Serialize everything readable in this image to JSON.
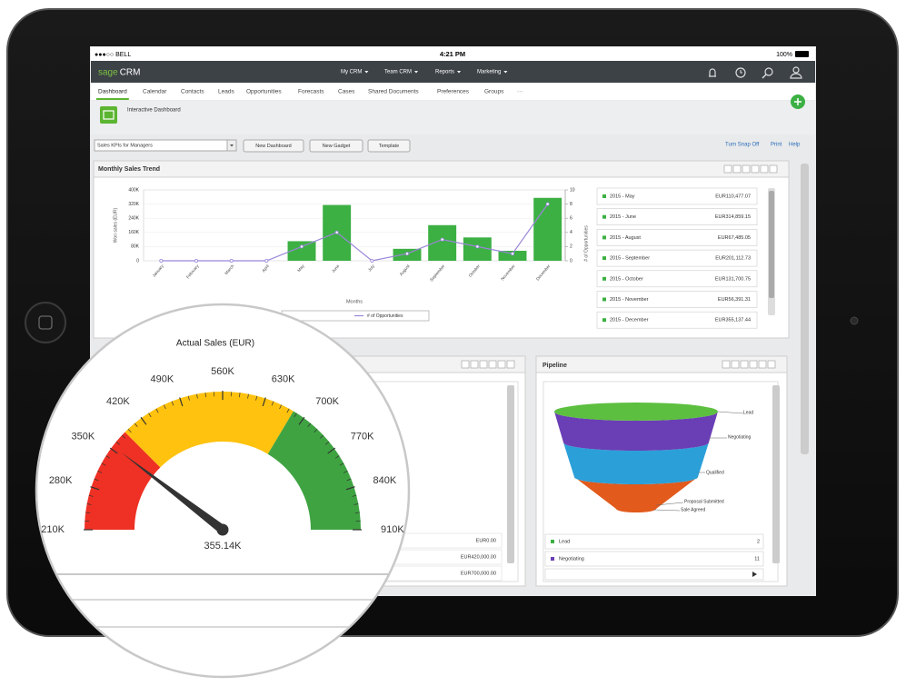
{
  "status": {
    "carrier": "●●●○○ BELL",
    "time": "4:21 PM",
    "battery": "100%"
  },
  "header": {
    "brand": "sage",
    "product": "CRM",
    "menu": [
      "My CRM",
      "Team CRM",
      "Reports",
      "Marketing"
    ]
  },
  "tabs": [
    "Dashboard",
    "Calendar",
    "Contacts",
    "Leads",
    "Opportunities",
    "Forecasts",
    "Cases",
    "Shared Documents",
    "Preferences",
    "Groups",
    "···"
  ],
  "page": {
    "title": "Interactive Dashboard",
    "dashboard_select": "Sales KPIs for Managers",
    "buttons": [
      "New Dashboard",
      "New Gadget",
      "Template"
    ],
    "links": [
      "Turn Snap Off",
      "Print",
      "Help"
    ]
  },
  "chart_data": [
    {
      "type": "bar",
      "title": "Monthly Sales Trend",
      "x_label": "Months",
      "y_label": "Won sales (EUR)",
      "y2_label": "# of Opportunities",
      "categories": [
        "January",
        "February",
        "March",
        "April",
        "May",
        "June",
        "July",
        "August",
        "September",
        "October",
        "November",
        "December"
      ],
      "series": [
        {
          "type": "bar",
          "color": "#3cb043",
          "values": [
            0,
            0,
            0,
            0,
            110477.07,
            314859.15,
            0,
            67485.05,
            201112.73,
            131700.75,
            56391.31,
            355137.44
          ]
        },
        {
          "type": "line",
          "name": "# of Opportunities",
          "color": "#9b86d9",
          "axis": "y2",
          "values": [
            0,
            0,
            0,
            0,
            2,
            4,
            0,
            1,
            3,
            2,
            1,
            8
          ]
        }
      ],
      "ylim": [
        0,
        400000
      ],
      "yticks": [
        0,
        {
          "value": 80000,
          "label": "80K"
        },
        {
          "value": 160000,
          "label": "160K"
        },
        {
          "value": 240000,
          "label": "240K"
        },
        {
          "value": 320000,
          "label": "320K"
        },
        {
          "value": 400000,
          "label": "400K"
        }
      ],
      "y2lim": [
        0,
        10
      ],
      "y2ticks": [
        0,
        2,
        4,
        6,
        8,
        10
      ],
      "grid": true
    },
    {
      "type": "gauge",
      "title": "Actual Sales (EUR)",
      "value": 355140,
      "value_label": "355.14K",
      "range": [
        210000,
        910000
      ],
      "ticks": [
        {
          "value": 210000,
          "label": "210K"
        },
        {
          "value": 280000,
          "label": "280K"
        },
        {
          "value": 350000,
          "label": "350K"
        },
        {
          "value": 420000,
          "label": "420K"
        },
        {
          "value": 490000,
          "label": "490K"
        },
        {
          "value": 560000,
          "label": "560K"
        },
        {
          "value": 630000,
          "label": "630K"
        },
        {
          "value": 700000,
          "label": "700K"
        },
        {
          "value": 770000,
          "label": "770K"
        },
        {
          "value": 840000,
          "label": "840K"
        },
        {
          "value": 910000,
          "label": "910K"
        }
      ],
      "bands": [
        {
          "from": 210000,
          "to": 385000,
          "color": "#ee3124"
        },
        {
          "from": 385000,
          "to": 680000,
          "color": "#ffc20e"
        },
        {
          "from": 680000,
          "to": 910000,
          "color": "#3fa342"
        }
      ],
      "needle_color": "#333333"
    }
  ],
  "sales_table": {
    "rows": [
      [
        "2015 - May",
        "EUR110,477.07"
      ],
      [
        "2015 - June",
        "EUR314,859.15"
      ],
      [
        "2015 - August",
        "EUR67,485.05"
      ],
      [
        "2015 - September",
        "EUR201,112.73"
      ],
      [
        "2015 - October",
        "EUR131,700.75"
      ],
      [
        "2015 - November",
        "EUR56,391.31"
      ],
      [
        "2015 - December",
        "EUR355,137.44"
      ]
    ]
  },
  "gauge_table": {
    "rows": [
      "EUR0.00",
      "EUR420,000.00",
      "EUR700,000.00"
    ]
  },
  "pipeline": {
    "title": "Pipeline",
    "stages": [
      "Lead",
      "Negotiating",
      "Qualified",
      "Proposal Submitted",
      "Sale Agreed"
    ],
    "legend": [
      {
        "label": "Lead",
        "count": 2
      },
      {
        "label": "Negotiating",
        "count": 11
      }
    ]
  }
}
